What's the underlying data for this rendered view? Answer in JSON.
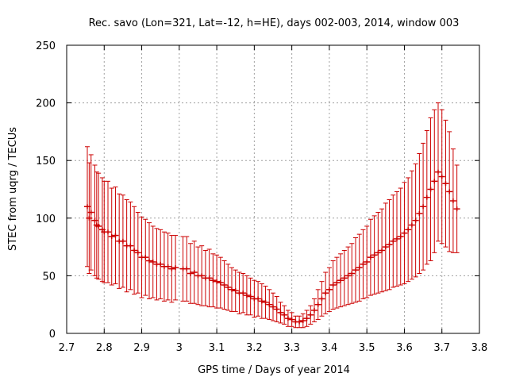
{
  "chart_data": {
    "type": "scatter",
    "title": "Rec. savo (Lon=321, Lat=-12, h=HE), days 002-003, 2014, window 003",
    "xlabel": "GPS time / Days of year 2014",
    "ylabel": "STEC from uqrg / TECUs",
    "xlim": [
      2.7,
      3.8
    ],
    "ylim": [
      0,
      250
    ],
    "xticks": [
      2.7,
      2.8,
      2.9,
      3.0,
      3.1,
      3.2,
      3.3,
      3.4,
      3.5,
      3.6,
      3.7,
      3.8
    ],
    "xtick_labels": [
      "2.7",
      "2.8",
      "2.9",
      "3",
      "3.1",
      "3.2",
      "3.3",
      "3.4",
      "3.5",
      "3.6",
      "3.7",
      "3.8"
    ],
    "yticks": [
      0,
      50,
      100,
      150,
      200,
      250
    ],
    "ytick_labels": [
      "0",
      "50",
      "100",
      "150",
      "200",
      "250"
    ],
    "grid": true,
    "legend": "none",
    "error_bars": true,
    "color": "#cc0000",
    "series": [
      {
        "x": [
          2.755,
          2.765,
          2.775,
          2.785,
          2.795,
          2.81,
          2.83,
          2.85,
          2.87,
          2.89,
          2.91,
          2.93,
          2.95,
          2.97,
          2.99,
          3.01,
          3.03,
          3.05,
          3.07,
          3.09,
          3.11,
          3.13,
          3.15,
          3.17,
          3.19,
          3.21,
          3.23,
          3.25,
          3.27,
          3.29,
          3.31,
          3.33,
          3.35,
          3.37,
          3.39,
          3.41,
          3.43,
          3.45,
          3.47,
          3.49,
          3.51,
          3.53,
          3.55,
          3.57,
          3.59,
          3.61,
          3.63,
          3.65,
          3.67,
          3.69,
          3.71,
          3.73
        ],
        "y": [
          110,
          105,
          98,
          93,
          90,
          88,
          85,
          80,
          76,
          70,
          66,
          62,
          60,
          58,
          57,
          56,
          52,
          50,
          48,
          46,
          44,
          40,
          37,
          35,
          32,
          30,
          27,
          23,
          18,
          13,
          10,
          11,
          16,
          25,
          35,
          42,
          46,
          50,
          55,
          60,
          66,
          70,
          75,
          80,
          84,
          90,
          98,
          110,
          125,
          140,
          130,
          115
        ],
        "yerr": [
          52,
          50,
          48,
          46,
          45,
          44,
          42,
          40,
          38,
          35,
          33,
          31,
          30,
          29,
          28,
          28,
          26,
          25,
          24,
          23,
          22,
          20,
          18,
          17,
          16,
          15,
          14,
          12,
          9,
          7,
          5,
          6,
          8,
          13,
          18,
          21,
          23,
          25,
          28,
          30,
          33,
          35,
          38,
          40,
          42,
          45,
          49,
          55,
          62,
          60,
          55,
          45
        ]
      },
      {
        "x": [
          2.76,
          2.78,
          2.8,
          2.82,
          2.84,
          2.86,
          2.88,
          2.9,
          2.92,
          2.94,
          2.96,
          2.98,
          3.02,
          3.04,
          3.06,
          3.08,
          3.1,
          3.12,
          3.14,
          3.16,
          3.18,
          3.2,
          3.22,
          3.24,
          3.26,
          3.28,
          3.3,
          3.32,
          3.34,
          3.36,
          3.38,
          3.4,
          3.42,
          3.44,
          3.46,
          3.48,
          3.5,
          3.52,
          3.54,
          3.56,
          3.58,
          3.6,
          3.62,
          3.64,
          3.66,
          3.68,
          3.7,
          3.72,
          3.74
        ],
        "y": [
          100,
          94,
          88,
          84,
          80,
          76,
          72,
          66,
          63,
          60,
          58,
          56,
          56,
          53,
          50,
          48,
          45,
          42,
          38,
          35,
          33,
          30,
          28,
          25,
          21,
          16,
          12,
          10,
          13,
          20,
          30,
          38,
          44,
          48,
          52,
          57,
          62,
          68,
          72,
          77,
          82,
          87,
          94,
          104,
          118,
          132,
          136,
          123,
          108
        ],
        "yerr": [
          48,
          46,
          44,
          42,
          41,
          40,
          38,
          35,
          33,
          31,
          30,
          29,
          28,
          27,
          26,
          25,
          23,
          21,
          19,
          18,
          17,
          16,
          15,
          13,
          11,
          8,
          6,
          5,
          7,
          10,
          15,
          19,
          22,
          24,
          26,
          29,
          31,
          34,
          36,
          39,
          41,
          44,
          47,
          52,
          58,
          62,
          58,
          52,
          38
        ]
      }
    ]
  }
}
